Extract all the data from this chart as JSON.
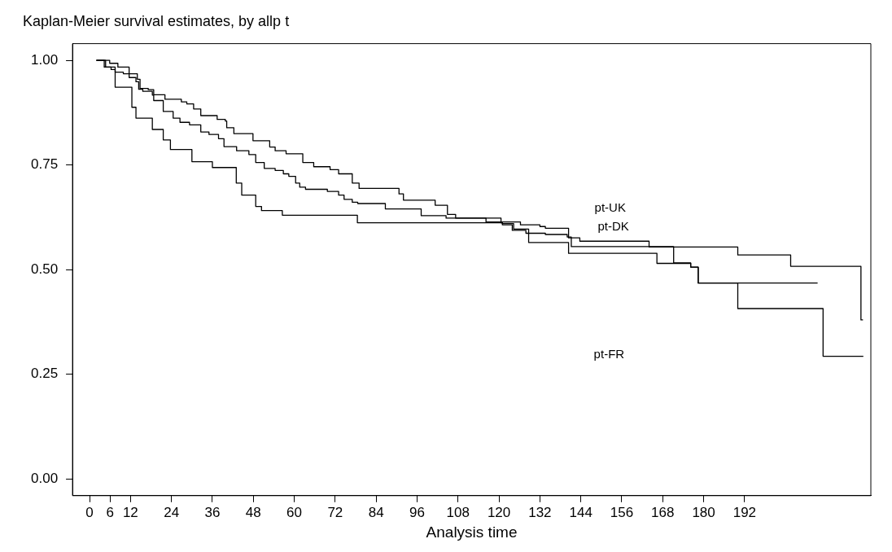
{
  "chart_data": {
    "type": "step",
    "title": "Kaplan-Meier survival estimates, by allp t",
    "xlabel": "Analysis time",
    "xlim": [
      -5,
      229
    ],
    "ylim": [
      -0.04,
      1.04
    ],
    "xticks": [
      0,
      6,
      12,
      24,
      36,
      48,
      60,
      72,
      84,
      96,
      108,
      120,
      132,
      144,
      156,
      168,
      180,
      192
    ],
    "yticks": [
      {
        "value": 0,
        "label": "0.00"
      },
      {
        "value": 0.25,
        "label": "0.25"
      },
      {
        "value": 0.5,
        "label": "0.50"
      },
      {
        "value": 0.75,
        "label": "0.75"
      },
      {
        "value": 1,
        "label": "1.00"
      }
    ],
    "grid": false,
    "legend": false,
    "marker": "none",
    "line_style": "solid",
    "series": [
      {
        "color": "#000000",
        "x": [
          2,
          5.9,
          8.3,
          11.6,
          14,
          14.8,
          17.2,
          18.8,
          22.1,
          26.9,
          28.5,
          30.5,
          32.6,
          37.4,
          39.8,
          40.2,
          42.3,
          47.9,
          52.8,
          54.4,
          57.6,
          62.5,
          65.7,
          70.5,
          73,
          77,
          79,
          90.7,
          92,
          101.3,
          104.9,
          107.3,
          116.2,
          126.3,
          132,
          133.6,
          140.4,
          143.7,
          164,
          190,
          205.5,
          226.1,
          226.7
        ],
        "values": [
          1,
          0.993,
          0.984,
          0.968,
          0.955,
          0.933,
          0.93,
          0.918,
          0.907,
          0.901,
          0.896,
          0.884,
          0.868,
          0.859,
          0.855,
          0.839,
          0.825,
          0.808,
          0.793,
          0.784,
          0.777,
          0.756,
          0.746,
          0.739,
          0.729,
          0.707,
          0.694,
          0.681,
          0.666,
          0.654,
          0.632,
          0.623,
          0.614,
          0.607,
          0.603,
          0.599,
          0.576,
          0.568,
          0.554,
          0.535,
          0.508,
          0.38,
          0.38
        ]
      },
      {
        "color": "#000000",
        "x": [
          2,
          4.7,
          6.3,
          7.5,
          9.9,
          11.6,
          13.6,
          14.4,
          15.6,
          18.4,
          18.8,
          21.6,
          24.5,
          26.5,
          29.3,
          32.6,
          35,
          37.8,
          39.4,
          43.1,
          46.7,
          48.7,
          51.2,
          54.4,
          56.8,
          58.4,
          60.4,
          61.6,
          63.3,
          69.7,
          73,
          74.6,
          77,
          78.6,
          86.7,
          97.2,
          104.5,
          120.6,
          121,
          123.9,
          127.9,
          133.6,
          140,
          141.2,
          171.2,
          176.2,
          178.4,
          213.4
        ],
        "values": [
          1,
          0.984,
          0.978,
          0.972,
          0.968,
          0.959,
          0.949,
          0.931,
          0.926,
          0.917,
          0.904,
          0.878,
          0.862,
          0.852,
          0.846,
          0.829,
          0.823,
          0.813,
          0.794,
          0.784,
          0.775,
          0.756,
          0.742,
          0.737,
          0.729,
          0.723,
          0.707,
          0.697,
          0.692,
          0.687,
          0.678,
          0.668,
          0.661,
          0.658,
          0.645,
          0.629,
          0.623,
          0.612,
          0.607,
          0.594,
          0.587,
          0.584,
          0.578,
          0.555,
          0.516,
          0.506,
          0.468,
          0.468
        ]
      },
      {
        "color": "#000000",
        "x": [
          2,
          4.3,
          7.5,
          12.4,
          13.6,
          18.4,
          21.6,
          23.7,
          30,
          36,
          43,
          44.6,
          48.7,
          50.4,
          56.5,
          78.5,
          121,
          124.3,
          128.7,
          140.4,
          166.3,
          176.2,
          178.4,
          190,
          215,
          226.8
        ],
        "values": [
          1,
          0.984,
          0.936,
          0.888,
          0.862,
          0.835,
          0.81,
          0.787,
          0.758,
          0.744,
          0.707,
          0.678,
          0.651,
          0.641,
          0.63,
          0.612,
          0.61,
          0.597,
          0.565,
          0.539,
          0.515,
          0.506,
          0.468,
          0.407,
          0.293,
          0.293
        ]
      }
    ],
    "annotations": [
      "pt-UK",
      "pt-DK",
      "pt-FR"
    ]
  }
}
